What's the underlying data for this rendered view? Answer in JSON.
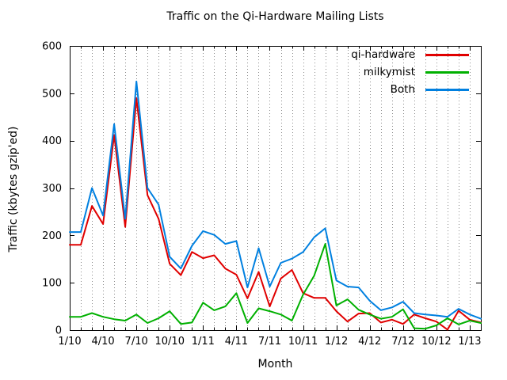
{
  "title": "Traffic on the Qi-Hardware Mailing Lists",
  "chart_data": {
    "type": "line",
    "title": "Traffic on the Qi-Hardware Mailing Lists",
    "xlabel": "Month",
    "ylabel": "Traffic (kbytes gzip'ed)",
    "ylim": [
      0,
      600
    ],
    "yticks": [
      "0",
      "100",
      "200",
      "300",
      "400",
      "500",
      "600"
    ],
    "grid": "vertical dotted gridline at every month, no horizontal gridlines",
    "legend_position": "top-right inside plot, no border",
    "x_months": [
      "1/10",
      "2/10",
      "3/10",
      "4/10",
      "5/10",
      "6/10",
      "7/10",
      "8/10",
      "9/10",
      "10/10",
      "11/10",
      "12/10",
      "1/11",
      "2/11",
      "3/11",
      "4/11",
      "5/11",
      "6/11",
      "7/11",
      "8/11",
      "9/11",
      "10/11",
      "11/11",
      "12/11",
      "1/12",
      "2/12",
      "3/12",
      "4/12",
      "5/12",
      "6/12",
      "7/12",
      "8/12",
      "9/12",
      "10/12",
      "11/12",
      "12/12",
      "1/13",
      "2/13"
    ],
    "xtick_labels": [
      "1/10",
      "4/10",
      "7/10",
      "10/10",
      "1/11",
      "4/11",
      "7/11",
      "10/11",
      "1/12",
      "4/12",
      "7/12",
      "10/12",
      "1/13"
    ],
    "xtick_every": 3,
    "axis_color": "#000000",
    "grid_color": "#8a8a8a",
    "series": [
      {
        "name": "qi-hardware",
        "color": "#e00000",
        "values": [
          180,
          180,
          262,
          224,
          412,
          218,
          490,
          285,
          235,
          140,
          116,
          165,
          152,
          158,
          130,
          117,
          67,
          123,
          50,
          109,
          127,
          78,
          68,
          68,
          40,
          18,
          35,
          36,
          16,
          22,
          13,
          33,
          25,
          18,
          1,
          41,
          22,
          16
        ]
      },
      {
        "name": "milkymist",
        "color": "#00b000",
        "values": [
          28,
          28,
          36,
          28,
          23,
          20,
          33,
          15,
          25,
          40,
          13,
          16,
          58,
          42,
          50,
          78,
          15,
          46,
          40,
          33,
          20,
          75,
          115,
          182,
          52,
          65,
          43,
          33,
          24,
          28,
          44,
          4,
          3,
          10,
          25,
          12,
          20,
          15
        ]
      },
      {
        "name": "Both",
        "color": "#0080e0",
        "values": [
          207,
          207,
          300,
          242,
          435,
          235,
          525,
          300,
          265,
          155,
          130,
          178,
          209,
          201,
          182,
          188,
          90,
          173,
          92,
          142,
          151,
          165,
          196,
          215,
          105,
          92,
          90,
          62,
          42,
          48,
          60,
          36,
          33,
          31,
          28,
          45,
          33,
          24
        ]
      }
    ]
  }
}
